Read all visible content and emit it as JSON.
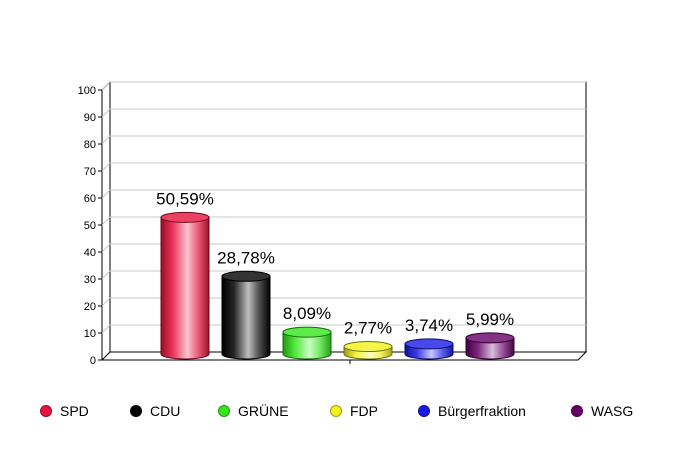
{
  "chart_data": {
    "type": "bar",
    "categories": [
      "SPD",
      "CDU",
      "GRÜNE",
      "FDP",
      "Bürgerfraktion",
      "WASG"
    ],
    "values": [
      50.59,
      28.78,
      8.09,
      2.77,
      3.74,
      5.99
    ],
    "data_labels": [
      "50,59%",
      "28,78%",
      "8,09%",
      "2,77%",
      "3,74%",
      "5,99%"
    ],
    "colors": [
      "#e8123c",
      "#000000",
      "#34e61b",
      "#f2f21a",
      "#1a1ae6",
      "#660066"
    ],
    "yticks": [
      "0",
      "10",
      "20",
      "30",
      "40",
      "50",
      "60",
      "70",
      "80",
      "90",
      "100"
    ],
    "ylim": [
      0,
      100
    ],
    "grid": true,
    "legend_position": "bottom"
  }
}
